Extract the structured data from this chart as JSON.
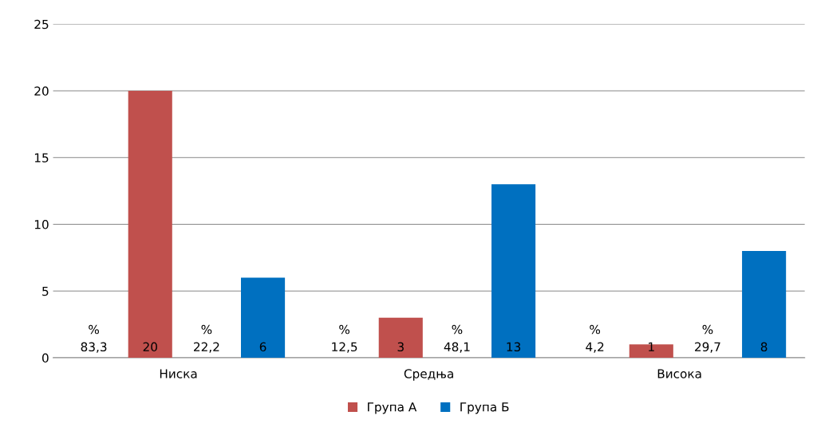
{
  "chart_data": {
    "type": "bar",
    "categories": [
      "Ниска",
      "Средња",
      "Висока"
    ],
    "series": [
      {
        "name": "Група А",
        "color": "#c0504d",
        "values": [
          20,
          3,
          1
        ]
      },
      {
        "name": "Група Б",
        "color": "#0070c0",
        "values": [
          6,
          13,
          8
        ]
      }
    ],
    "annotations": [
      "%\n83,3",
      "%\n22,2",
      "%\n12,5",
      "%\n48,1",
      "%\n4,2",
      "%\n29,7"
    ],
    "ylim": [
      0,
      25
    ],
    "yticks": [
      0,
      5,
      10,
      15,
      20,
      25
    ],
    "grid": "y",
    "legend": "bottom",
    "data_labels": true
  }
}
